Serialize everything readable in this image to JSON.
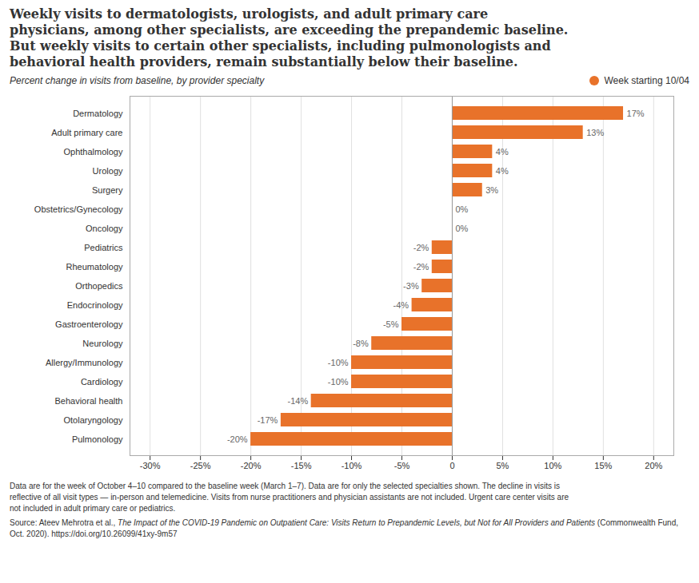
{
  "chart_data": {
    "type": "bar",
    "orientation": "horizontal",
    "title": "Weekly visits to dermatologists, urologists, and adult primary care\nphysicians, among other specialists, are exceeding the prepandemic baseline.\nBut weekly visits to certain other specialists, including pulmonologists and\nbehavioral health providers, remain substantially below their baseline.",
    "subtitle": "Percent change in visits from baseline, by provider specialty",
    "categories": [
      "Dermatology",
      "Adult primary care",
      "Ophthalmology",
      "Urology",
      "Surgery",
      "Obstetrics/Gynecology",
      "Oncology",
      "Pediatrics",
      "Rheumatology",
      "Orthopedics",
      "Endocrinology",
      "Gastroenterology",
      "Neurology",
      "Allergy/Immunology",
      "Cardiology",
      "Behavioral health",
      "Otolaryngology",
      "Pulmonology"
    ],
    "series": [
      {
        "name": "Week starting 10/04",
        "color": "#E8722A",
        "values": [
          17,
          13,
          4,
          4,
          3,
          0,
          0,
          -2,
          -2,
          -3,
          -4,
          -5,
          -8,
          -10,
          -10,
          -14,
          -17,
          -20
        ],
        "value_labels": [
          "17%",
          "13%",
          "4%",
          "4%",
          "3%",
          "0%",
          "0%",
          "-2%",
          "-2%",
          "-3%",
          "-4%",
          "-5%",
          "-8%",
          "-10%",
          "-10%",
          "-14%",
          "-17%",
          "-20%"
        ]
      }
    ],
    "data_labels": true,
    "xlim": [
      -32,
      22
    ],
    "xticks": [
      {
        "value": -30,
        "label": "-30%"
      },
      {
        "value": -25,
        "label": "-25%"
      },
      {
        "value": -20,
        "label": "-20%"
      },
      {
        "value": -15,
        "label": "-15%"
      },
      {
        "value": -10,
        "label": "-10%"
      },
      {
        "value": -5,
        "label": "-5%"
      },
      0,
      {
        "value": 5,
        "label": "5%"
      },
      {
        "value": 10,
        "label": "10%"
      },
      {
        "value": 15,
        "label": "15%"
      },
      {
        "value": 20,
        "label": "20%"
      }
    ],
    "grid": true,
    "legend": "top right",
    "footnote": "Data are for the week of October 4–10 compared to the baseline week (March 1–7). Data are for only the selected specialties shown. The decline in visits is\nreflective of all visit types — in-person and telemedicine. Visits from nurse practitioners and physician assistants are not included. Urgent care center visits are\nnot included in adult primary care or pediatrics.",
    "source": [
      "Source: Ateev Mehrotra et al., ",
      "The Impact of the COVID-19 Pandemic on Outpatient Care: Visits Return to Prepandemic Levels, but Not for All Providers and Patients",
      " (Commonwealth Fund, Oct. 2020). https://doi.org/10.26099/41xy-9m57"
    ]
  }
}
